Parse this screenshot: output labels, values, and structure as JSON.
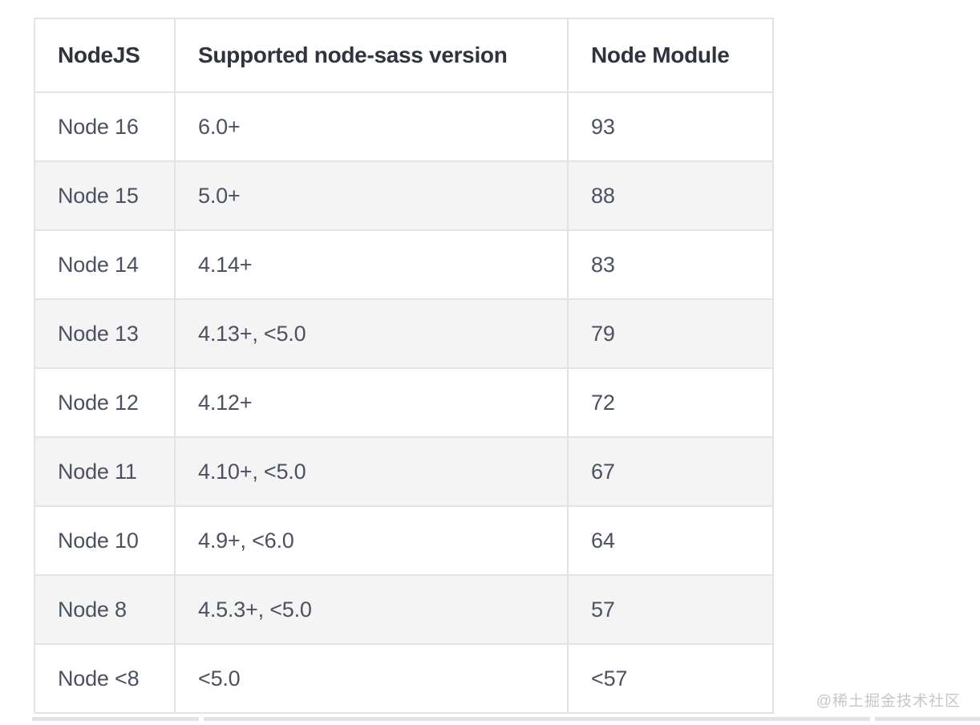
{
  "colors": {
    "border-color": "#e2e3e5",
    "header-text": "#2e333d",
    "body-text": "#4b5160",
    "stripe": "#f4f4f5",
    "watermark": "#c5c6c8"
  },
  "table": {
    "columns": [
      "NodeJS",
      "Supported node-sass version",
      "Node Module"
    ],
    "rows": [
      [
        "Node 16",
        "6.0+",
        "93"
      ],
      [
        "Node 15",
        "5.0+",
        "88"
      ],
      [
        "Node 14",
        "4.14+",
        "83"
      ],
      [
        "Node 13",
        "4.13+, <5.0",
        "79"
      ],
      [
        "Node 12",
        "4.12+",
        "72"
      ],
      [
        "Node 11",
        "4.10+, <5.0",
        "67"
      ],
      [
        "Node 10",
        "4.9+, <6.0",
        "64"
      ],
      [
        "Node 8",
        "4.5.3+, <5.0",
        "57"
      ],
      [
        "Node <8",
        "<5.0",
        "<57"
      ]
    ]
  },
  "watermark": {
    "text": "@稀土掘金技术社区"
  }
}
